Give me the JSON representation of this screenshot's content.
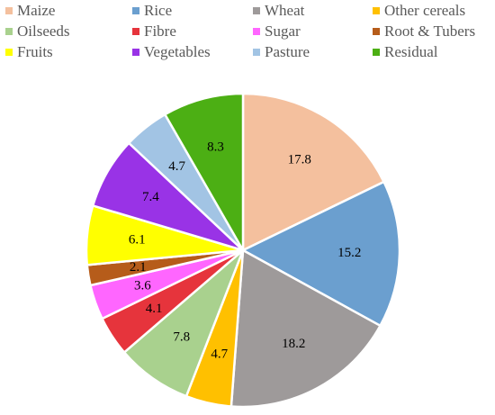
{
  "chart_data": {
    "type": "pie",
    "legend_position": "top",
    "slices": [
      {
        "label": "Maize",
        "value": 17.8,
        "value_label": "17.8",
        "color": "#F4C09E"
      },
      {
        "label": "Rice",
        "value": 15.2,
        "value_label": "15.2",
        "color": "#6B9FCF"
      },
      {
        "label": "Wheat",
        "value": 18.2,
        "value_label": "18.2",
        "color": "#9E9A9A"
      },
      {
        "label": "Other cereals",
        "value": 4.7,
        "value_label": "4.7",
        "color": "#FFC000"
      },
      {
        "label": "Oilseeds",
        "value": 7.8,
        "value_label": "7.8",
        "color": "#A9D18E"
      },
      {
        "label": "Fibre",
        "value": 4.1,
        "value_label": "4.1",
        "color": "#E6343C"
      },
      {
        "label": "Sugar",
        "value": 3.6,
        "value_label": "3.6",
        "color": "#FF66FF"
      },
      {
        "label": "Root & Tubers",
        "value": 2.1,
        "value_label": "2.1",
        "color": "#B65C1A"
      },
      {
        "label": "Fruits",
        "value": 6.1,
        "value_label": "6.1",
        "color": "#FFFF00"
      },
      {
        "label": "Vegetables",
        "value": 7.4,
        "value_label": "7.4",
        "color": "#9933E6"
      },
      {
        "label": "Pasture",
        "value": 4.7,
        "value_label": "4.7",
        "color": "#A2C4E4"
      },
      {
        "label": "Residual",
        "value": 8.3,
        "value_label": "8.3",
        "color": "#4CAF14"
      }
    ]
  }
}
